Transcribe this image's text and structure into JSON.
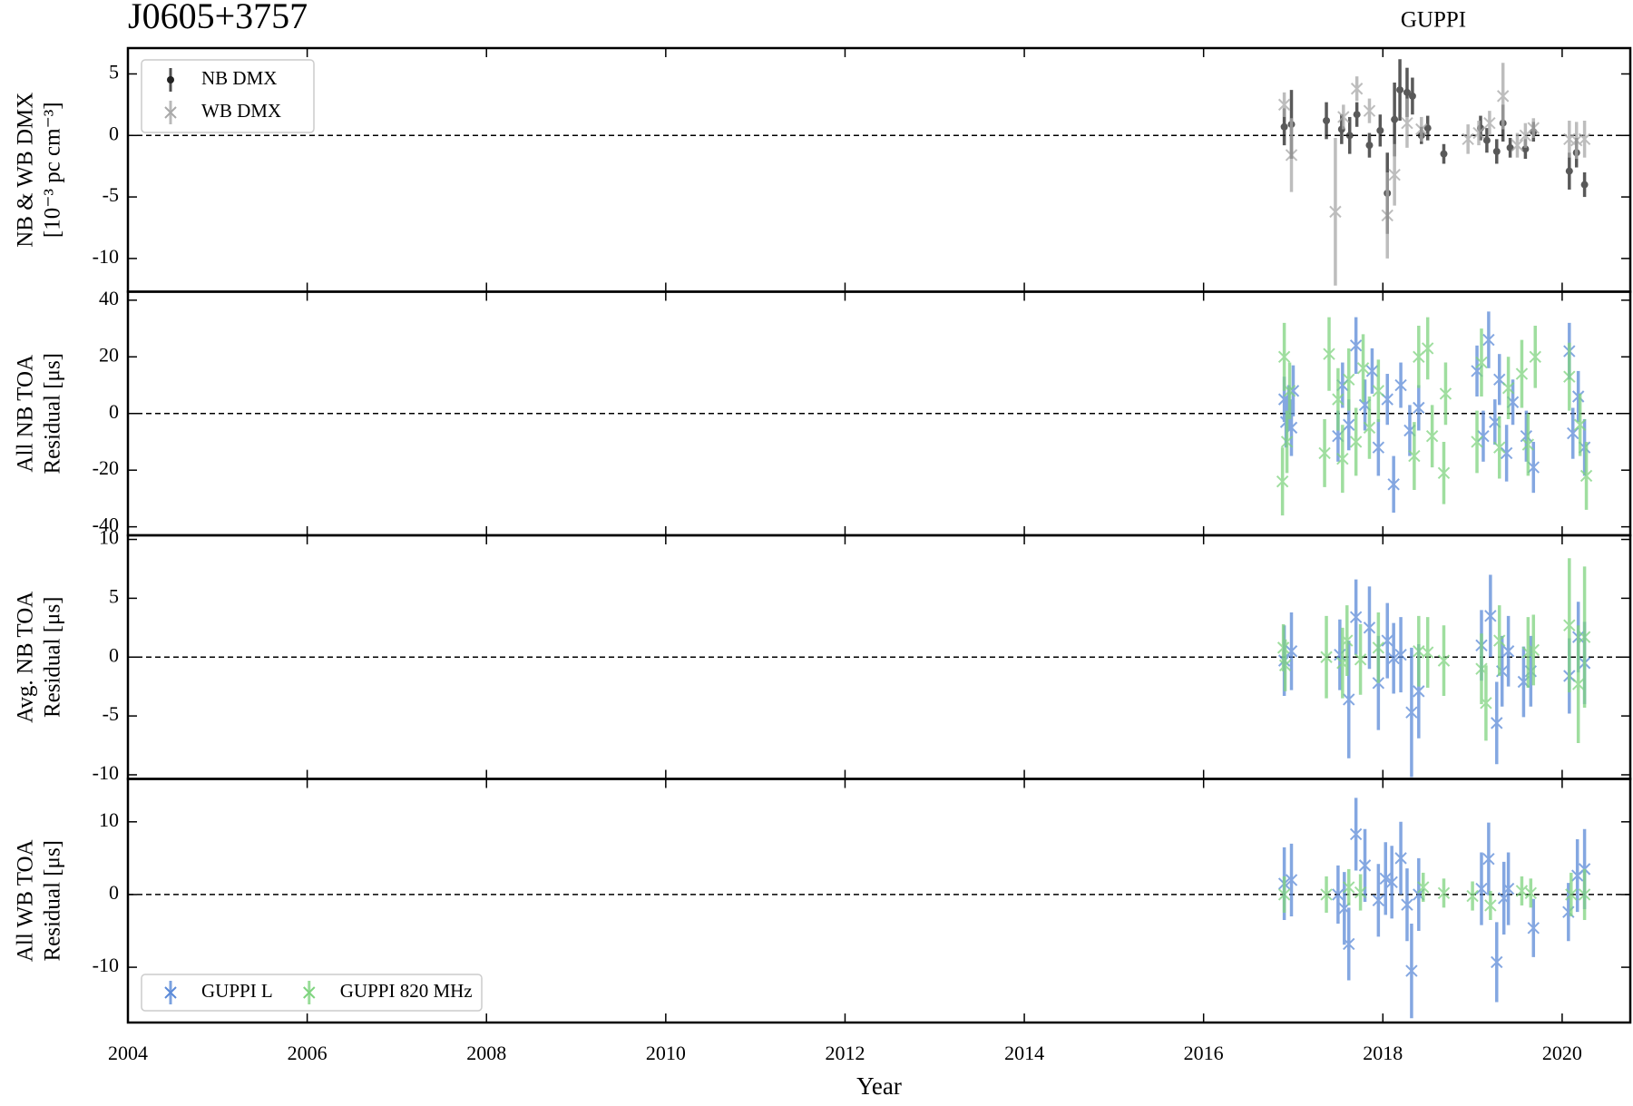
{
  "chart_data": [
    {
      "type": "errorbar",
      "title": "J0605+3757",
      "annotation": "GUPPI",
      "ylabel": [
        "NB & WB DMX",
        "[10⁻³ pc cm⁻³]"
      ],
      "xlim": [
        2004,
        2020.76
      ],
      "xticks": [
        2004,
        2006,
        2008,
        2010,
        2012,
        2014,
        2016,
        2018,
        2020
      ],
      "ylim": [
        -12.7,
        7.1
      ],
      "yticks": [
        -10,
        -5,
        0,
        5
      ],
      "hline": 0,
      "legend": "upper left",
      "series": [
        {
          "name": "NB DMX",
          "color": "#222222",
          "marker": "o",
          "x": [
            2016.9,
            2016.98,
            2017.37,
            2017.54,
            2017.63,
            2017.71,
            2017.85,
            2017.97,
            2018.05,
            2018.13,
            2018.19,
            2018.27,
            2018.33,
            2018.43,
            2018.5,
            2018.68,
            2019.09,
            2019.16,
            2019.27,
            2019.34,
            2019.42,
            2019.59,
            2019.68,
            2020.08,
            2020.16,
            2020.25
          ],
          "values": [
            0.7,
            0.9,
            1.2,
            0.5,
            0,
            1.7,
            -0.8,
            0.4,
            -4.7,
            1.3,
            3.7,
            3.5,
            3.2,
            0,
            0.6,
            -1.5,
            0.6,
            -0.4,
            -1.3,
            1,
            -1,
            -1.1,
            0.3,
            -2.9,
            -1.4,
            -4
          ],
          "errors": [
            1.5,
            2.8,
            1.5,
            1.2,
            1.5,
            1,
            1,
            1.3,
            3.3,
            3,
            2.5,
            2,
            1.5,
            0.7,
            1,
            0.8,
            1,
            1,
            1,
            1.5,
            0.8,
            0.8,
            0.8,
            1.5,
            1.2,
            1
          ]
        },
        {
          "name": "WB DMX",
          "color": "#a8a8a8",
          "marker": "x",
          "x": [
            2016.9,
            2016.98,
            2017.47,
            2017.56,
            2017.71,
            2017.85,
            2018.05,
            2018.13,
            2018.27,
            2018.43,
            2018.95,
            2019.07,
            2019.19,
            2019.34,
            2019.5,
            2019.59,
            2019.68,
            2020.08,
            2020.16,
            2020.25
          ],
          "values": [
            2.5,
            -1.6,
            -6.2,
            1.5,
            3.8,
            2,
            -6.5,
            -3.2,
            1,
            0.5,
            -0.3,
            0.2,
            1,
            3.2,
            -0.8,
            0,
            0.6,
            -0.3,
            -0.4,
            -0.3
          ],
          "errors": [
            1,
            3,
            6,
            1,
            1,
            1,
            3.5,
            2.5,
            2,
            1,
            1.2,
            1,
            1,
            2.7,
            1,
            1,
            0.8,
            1.5,
            1.5,
            1.5
          ]
        }
      ]
    },
    {
      "type": "errorbar",
      "ylabel": [
        "All NB TOA",
        "Residual [μs]"
      ],
      "xlim": [
        2004,
        2020.76
      ],
      "xticks": [
        2004,
        2006,
        2008,
        2010,
        2012,
        2014,
        2016,
        2018,
        2020
      ],
      "ylim": [
        -43,
        43
      ],
      "yticks": [
        -40,
        -20,
        0,
        20,
        40
      ],
      "hline": 0,
      "series": [
        {
          "name": "GUPPI L",
          "color": "#5b8ad8",
          "marker": "x",
          "x": [
            2016.9,
            2016.92,
            2016.95,
            2016.98,
            2017.0,
            2017.5,
            2017.55,
            2017.62,
            2017.7,
            2017.8,
            2017.88,
            2017.95,
            2018.05,
            2018.12,
            2018.2,
            2018.3,
            2018.4,
            2019.05,
            2019.12,
            2019.18,
            2019.25,
            2019.3,
            2019.38,
            2019.45,
            2019.6,
            2019.68,
            2020.08,
            2020.12,
            2020.18,
            2020.25
          ],
          "values": [
            5,
            -3,
            2,
            -5,
            8,
            -8,
            10,
            -4,
            24,
            3,
            15,
            -12,
            5,
            -25,
            10,
            -6,
            2,
            15,
            -8,
            26,
            -3,
            12,
            -14,
            4,
            -8,
            -19,
            22,
            -7,
            6,
            -12
          ],
          "errors": [
            8,
            9,
            8,
            10,
            9,
            9,
            8,
            9,
            10,
            9,
            8,
            10,
            9,
            10,
            8,
            9,
            8,
            9,
            9,
            10,
            8,
            9,
            10,
            8,
            9,
            9,
            10,
            9,
            9,
            10
          ]
        },
        {
          "name": "GUPPI 820 MHz",
          "color": "#7fd47f",
          "marker": "x",
          "x": [
            2016.88,
            2016.9,
            2016.93,
            2016.96,
            2017.35,
            2017.4,
            2017.5,
            2017.55,
            2017.62,
            2017.7,
            2017.78,
            2017.85,
            2017.95,
            2018.35,
            2018.4,
            2018.5,
            2018.55,
            2018.68,
            2018.7,
            2019.05,
            2019.1,
            2019.3,
            2019.4,
            2019.55,
            2019.62,
            2019.7,
            2020.08,
            2020.2,
            2020.27
          ],
          "values": [
            -24,
            20,
            -10,
            8,
            -14,
            21,
            5,
            -16,
            12,
            -10,
            16,
            -5,
            8,
            -15,
            20,
            23,
            -8,
            -21,
            7,
            -10,
            18,
            -12,
            9,
            14,
            -11,
            20,
            13,
            -4,
            -22
          ],
          "errors": [
            12,
            12,
            11,
            10,
            12,
            13,
            11,
            12,
            11,
            12,
            12,
            11,
            11,
            12,
            11,
            11,
            11,
            11,
            11,
            11,
            12,
            11,
            11,
            12,
            11,
            11,
            12,
            11,
            12
          ]
        }
      ]
    },
    {
      "type": "errorbar",
      "ylabel": [
        "Avg. NB TOA",
        "Residual [μs]"
      ],
      "xlim": [
        2004,
        2020.76
      ],
      "xticks": [
        2004,
        2006,
        2008,
        2010,
        2012,
        2014,
        2016,
        2018,
        2020
      ],
      "ylim": [
        -10.35,
        10.35
      ],
      "yticks": [
        -10,
        -5,
        0,
        5,
        10
      ],
      "hline": 0,
      "series": [
        {
          "name": "GUPPI L",
          "color": "#5b8ad8",
          "marker": "x",
          "x": [
            2016.9,
            2016.98,
            2017.52,
            2017.62,
            2017.7,
            2017.85,
            2017.95,
            2018.05,
            2018.12,
            2018.2,
            2018.32,
            2018.4,
            2019.1,
            2019.2,
            2019.27,
            2019.33,
            2019.4,
            2019.57,
            2019.65,
            2020.08,
            2020.18,
            2020.25
          ],
          "values": [
            -0.3,
            0.5,
            0.2,
            -3.6,
            3.4,
            2.5,
            -2.2,
            1.4,
            -0.1,
            0.2,
            -4.7,
            -2.9,
            1,
            3.5,
            -5.6,
            -1.2,
            0.5,
            -2.1,
            -1.2,
            -1.6,
            1.7,
            -0.5
          ],
          "errors": [
            3,
            3.3,
            3,
            5,
            3.2,
            3.5,
            4,
            3.2,
            3,
            3.2,
            5.5,
            4,
            3,
            3.5,
            3.5,
            3,
            3,
            3,
            3,
            3.2,
            3,
            3.5
          ]
        },
        {
          "name": "GUPPI 820 MHz",
          "color": "#7fd47f",
          "marker": "x",
          "x": [
            2016.89,
            2016.91,
            2017.37,
            2017.55,
            2017.6,
            2017.75,
            2017.95,
            2018.4,
            2018.5,
            2018.68,
            2019.1,
            2019.15,
            2019.3,
            2019.62,
            2019.68,
            2020.08,
            2020.18,
            2020.25
          ],
          "values": [
            0.8,
            -0.7,
            0,
            -0.5,
            1.4,
            -0.2,
            0.8,
            0.5,
            0.4,
            -0.3,
            -1,
            -3.9,
            1.4,
            0.4,
            0.6,
            2.7,
            -2.3,
            1.7
          ],
          "errors": [
            2,
            2.2,
            3.5,
            3,
            3,
            3,
            3,
            3,
            3,
            3,
            3,
            3.2,
            3,
            3,
            3,
            5.7,
            5,
            6
          ]
        }
      ]
    },
    {
      "type": "errorbar",
      "ylabel": [
        "All WB TOA",
        "Residual [μs]"
      ],
      "xlabel": "Year",
      "xlim": [
        2004,
        2020.76
      ],
      "xticks": [
        2004,
        2006,
        2008,
        2010,
        2012,
        2014,
        2016,
        2018,
        2020
      ],
      "ylim": [
        -17.6,
        15.9
      ],
      "yticks": [
        -10,
        0,
        10
      ],
      "hline": 0,
      "legend": "lower left",
      "series": [
        {
          "name": "GUPPI L",
          "color": "#5b8ad8",
          "marker": "x",
          "x": [
            2016.9,
            2016.98,
            2017.5,
            2017.57,
            2017.62,
            2017.7,
            2017.8,
            2017.95,
            2018.03,
            2018.1,
            2018.2,
            2018.27,
            2018.32,
            2018.4,
            2019.1,
            2019.18,
            2019.27,
            2019.35,
            2019.4,
            2019.68,
            2020.07,
            2020.17,
            2020.25
          ],
          "values": [
            1.5,
            2,
            0,
            -1.9,
            -6.8,
            8.3,
            4,
            -0.8,
            2.2,
            1.7,
            5,
            -1.4,
            -10.5,
            0,
            0.8,
            4.9,
            -9.3,
            -0.5,
            0.8,
            -4.6,
            -2.4,
            2.6,
            3.5
          ],
          "errors": [
            5,
            5,
            4,
            5,
            5,
            5,
            5,
            5,
            5,
            5,
            5,
            5,
            6.5,
            5,
            5,
            5,
            5.5,
            5,
            5,
            4,
            4,
            5,
            5.5
          ]
        },
        {
          "name": "GUPPI 820 MHz",
          "color": "#7fd47f",
          "marker": "x",
          "x": [
            2016.9,
            2017.37,
            2017.62,
            2017.75,
            2018.45,
            2018.68,
            2019.0,
            2019.2,
            2019.55,
            2019.65,
            2020.1,
            2020.25
          ],
          "values": [
            0,
            0,
            1,
            0.3,
            1,
            0.2,
            -0.2,
            -1.5,
            0.5,
            0.2,
            0,
            0
          ],
          "errors": [
            2.5,
            2.5,
            2.5,
            2.5,
            2,
            2,
            2,
            2,
            2,
            2,
            3,
            3.5
          ]
        }
      ]
    }
  ]
}
